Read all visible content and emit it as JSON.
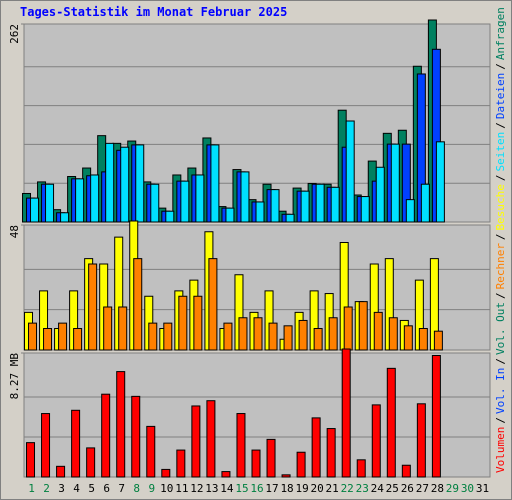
{
  "chart_data": [
    {
      "type": "bar",
      "title": "Tages-Statistik im Monat Februar 2025",
      "categories": [
        "1",
        "2",
        "3",
        "4",
        "5",
        "6",
        "7",
        "8",
        "9",
        "10",
        "11",
        "12",
        "13",
        "14",
        "15",
        "16",
        "17",
        "18",
        "19",
        "20",
        "21",
        "22",
        "23",
        "24",
        "25",
        "26",
        "27",
        "28",
        "29",
        "30",
        "31"
      ],
      "category_colors": [
        "#008040",
        "#008040",
        "#000000",
        "#000000",
        "#000000",
        "#000000",
        "#000000",
        "#008040",
        "#008040",
        "#000000",
        "#000000",
        "#000000",
        "#000000",
        "#000000",
        "#008040",
        "#008040",
        "#000000",
        "#000000",
        "#000000",
        "#000000",
        "#000000",
        "#008040",
        "#008040",
        "#000000",
        "#000000",
        "#000000",
        "#000000",
        "#000000",
        "#008040",
        "#008040",
        "#000000"
      ],
      "ylim": [
        0,
        262
      ],
      "yticks": [
        262
      ],
      "series": [
        {
          "name": "Anfragen",
          "color": "#008060",
          "values": [
            37,
            52,
            16,
            59,
            70,
            112,
            102,
            105,
            52,
            18,
            61,
            70,
            109,
            20,
            68,
            29,
            49,
            14,
            44,
            50,
            49,
            145,
            35,
            79,
            115,
            119,
            202,
            262,
            0,
            0,
            0
          ]
        },
        {
          "name": "Dateien",
          "color": "#0040ff",
          "values": [
            31,
            49,
            12,
            56,
            60,
            65,
            93,
            100,
            49,
            14,
            53,
            61,
            100,
            18,
            65,
            26,
            42,
            10,
            40,
            49,
            45,
            97,
            33,
            53,
            101,
            101,
            192,
            224,
            0,
            0,
            0
          ]
        },
        {
          "name": "Seiten",
          "color": "#00e0ff",
          "values": [
            31,
            49,
            12,
            56,
            61,
            102,
            97,
            100,
            49,
            14,
            53,
            61,
            100,
            18,
            65,
            26,
            42,
            10,
            40,
            49,
            45,
            131,
            33,
            71,
            101,
            29,
            49,
            104,
            0,
            0,
            0
          ]
        }
      ]
    },
    {
      "type": "bar",
      "ylim": [
        0,
        48
      ],
      "yticks": [
        48
      ],
      "series": [
        {
          "name": "Besuche",
          "color": "#ffff00",
          "values": [
            14,
            22,
            8,
            22,
            34,
            32,
            42,
            48,
            20,
            8,
            22,
            26,
            44,
            8,
            28,
            14,
            22,
            4,
            14,
            22,
            21,
            40,
            18,
            32,
            34,
            11,
            26,
            34,
            0,
            0,
            0
          ]
        },
        {
          "name": "Rechner",
          "color": "#ff8000",
          "values": [
            10,
            8,
            10,
            8,
            32,
            16,
            16,
            34,
            10,
            10,
            20,
            20,
            34,
            10,
            12,
            12,
            10,
            9,
            11,
            8,
            12,
            16,
            18,
            14,
            12,
            9,
            8,
            7,
            0,
            0,
            0
          ]
        }
      ]
    },
    {
      "type": "bar",
      "ylim": [
        0,
        8.27
      ],
      "yticks": [
        {
          "value": 8.27,
          "label": "8.27 MB"
        }
      ],
      "series": [
        {
          "name": "Volumen",
          "color": "#ff0000",
          "values": [
            2.22,
            4.1,
            0.69,
            4.31,
            1.88,
            5.35,
            6.81,
            5.21,
            3.27,
            0.49,
            1.74,
            4.59,
            4.93,
            0.35,
            4.1,
            1.74,
            2.43,
            0.14,
            1.6,
            3.82,
            3.13,
            8.27,
            1.11,
            4.66,
            7.02,
            0.76,
            4.73,
            7.85,
            0,
            0,
            0
          ]
        },
        {
          "name": "Vol. In",
          "color": "#0040ff",
          "values": [
            null,
            null,
            null,
            null,
            null,
            null,
            null,
            null,
            null,
            null,
            null,
            null,
            null,
            null,
            null,
            null,
            null,
            null,
            null,
            null,
            null,
            null,
            null,
            null,
            null,
            null,
            null,
            null,
            null,
            null,
            null
          ]
        },
        {
          "name": "Vol. Out",
          "color": "#008060",
          "values": [
            null,
            null,
            null,
            null,
            null,
            null,
            null,
            null,
            null,
            null,
            null,
            null,
            null,
            null,
            null,
            null,
            null,
            null,
            null,
            null,
            null,
            null,
            null,
            null,
            null,
            null,
            null,
            null,
            null,
            null,
            null
          ]
        }
      ]
    }
  ],
  "legend_separator": "/"
}
